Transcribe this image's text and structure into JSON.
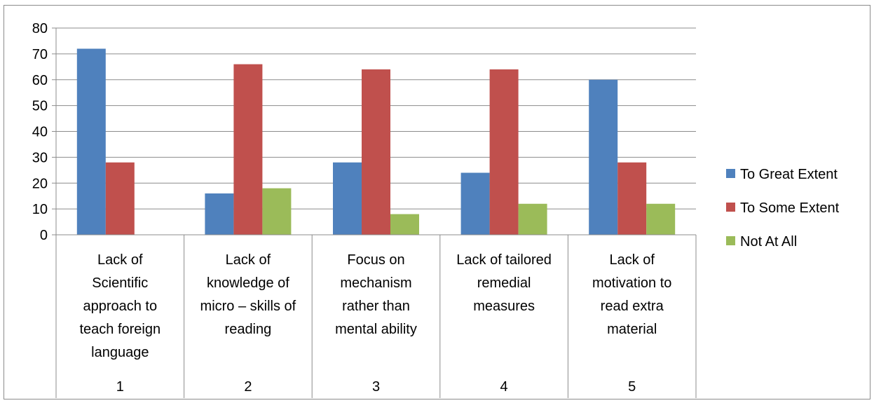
{
  "chart_data": {
    "type": "bar",
    "title": "",
    "xlabel": "",
    "ylabel": "",
    "ylim": [
      0,
      80
    ],
    "yticks": [
      0,
      10,
      20,
      30,
      40,
      50,
      60,
      70,
      80
    ],
    "grid": true,
    "legend_position": "right",
    "categories": [
      {
        "number": "1",
        "lines": [
          "Lack of",
          "Scientific",
          "approach to",
          "teach foreign",
          "language"
        ]
      },
      {
        "number": "2",
        "lines": [
          "Lack of",
          "knowledge of",
          "micro – skills of",
          "reading"
        ]
      },
      {
        "number": "3",
        "lines": [
          "Focus on",
          "mechanism",
          "rather than",
          "mental ability"
        ]
      },
      {
        "number": "4",
        "lines": [
          "Lack of tailored",
          "remedial",
          "measures"
        ]
      },
      {
        "number": "5",
        "lines": [
          "Lack of",
          "motivation to",
          "read extra",
          "material"
        ]
      }
    ],
    "series": [
      {
        "name": "To Great Extent",
        "color": "#4f81bd",
        "values": [
          72,
          16,
          28,
          24,
          60
        ]
      },
      {
        "name": "To Some Extent",
        "color": "#c0504d",
        "values": [
          28,
          66,
          64,
          64,
          28
        ]
      },
      {
        "name": "Not At All",
        "color": "#9bbb59",
        "values": [
          0,
          18,
          8,
          12,
          12
        ]
      }
    ]
  }
}
